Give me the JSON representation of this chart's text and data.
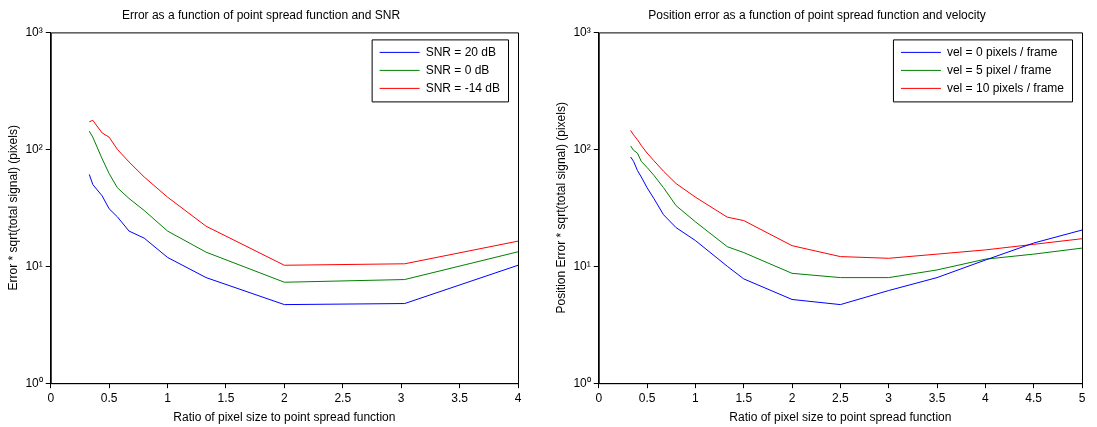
{
  "chart_data": [
    {
      "type": "line",
      "title": "Error as a function of point spread function and SNR",
      "xlabel": "Ratio of pixel size to point spread function",
      "ylabel": "Error * sqrt(total signal) (pixels)",
      "log": "y",
      "grid": false,
      "legend": "top right",
      "line_style": "solid",
      "marker": "none",
      "xlim": [
        0,
        4
      ],
      "xticks": [
        0,
        0.5,
        1,
        1.5,
        2,
        2.5,
        3,
        3.5,
        4
      ],
      "ylim": [
        1,
        1000
      ],
      "yticks": [
        {
          "value": 1,
          "label": "10⁰"
        },
        {
          "value": 10,
          "label": "10¹"
        },
        {
          "value": 100,
          "label": "10²"
        },
        {
          "value": 1000,
          "label": "10³"
        }
      ],
      "x": [
        0.33,
        0.36,
        0.44,
        0.5,
        0.57,
        0.67,
        0.8,
        1,
        1.33,
        2,
        3.03,
        4
      ],
      "series": [
        {
          "name": "SNR = 20 dB",
          "color": "#0000ff",
          "values": [
            61,
            50,
            40,
            31,
            26.5,
            20,
            17.4,
            11.9,
            8,
            4.7,
            4.8,
            10.2
          ]
        },
        {
          "name": "SNR = 0 dB",
          "color": "#008000",
          "values": [
            143,
            127,
            83,
            62,
            47,
            38,
            30,
            20,
            13.2,
            7.3,
            7.7,
            13.3
          ]
        },
        {
          "name": "SNR = -14 dB",
          "color": "#ff0000",
          "values": [
            172,
            177,
            138,
            127,
            100,
            78,
            58,
            39,
            22,
            10.2,
            10.5,
            16.4
          ]
        }
      ]
    },
    {
      "type": "line",
      "title": "Position error as a function of point spread function and velocity",
      "xlabel": "Ratio of pixel size to point spread function",
      "ylabel": "Position Error * sqrt(total signal) (pixels)",
      "log": "y",
      "grid": false,
      "legend": "top right",
      "line_style": "solid",
      "marker": "none",
      "xlim": [
        0,
        5
      ],
      "xticks": [
        0,
        0.5,
        1,
        1.5,
        2,
        2.5,
        3,
        3.5,
        4,
        4.5,
        5
      ],
      "ylim": [
        1,
        1000
      ],
      "yticks": [
        {
          "value": 1,
          "label": "10⁰"
        },
        {
          "value": 10,
          "label": "10¹"
        },
        {
          "value": 100,
          "label": "10²"
        },
        {
          "value": 1000,
          "label": "10³"
        }
      ],
      "x": [
        0.33,
        0.36,
        0.4,
        0.44,
        0.5,
        0.57,
        0.67,
        0.8,
        1,
        1.33,
        1.5,
        2,
        2.5,
        3,
        3.5,
        4,
        4.5,
        5
      ],
      "series": [
        {
          "name": "vel = 0 pixels / frame",
          "color": "#0000ff",
          "values": [
            86,
            79,
            66,
            58,
            47,
            38,
            27.6,
            21.4,
            16.6,
            10,
            7.8,
            5.2,
            4.7,
            6.2,
            8,
            11.3,
            15.8,
            20.4
          ]
        },
        {
          "name": "vel = 5 pixel / frame",
          "color": "#008000",
          "values": [
            107,
            98,
            93,
            79,
            70,
            60,
            47,
            33,
            24,
            14.7,
            13.1,
            8.7,
            8,
            8,
            9.3,
            11.5,
            12.7,
            14.3
          ]
        },
        {
          "name": "vel = 10 pixels / frame",
          "color": "#ff0000",
          "values": [
            145,
            133,
            121,
            108,
            93,
            80,
            65,
            51,
            39,
            26.3,
            24.6,
            15,
            12.1,
            11.7,
            12.7,
            13.8,
            15.4,
            17.2
          ]
        }
      ]
    }
  ]
}
